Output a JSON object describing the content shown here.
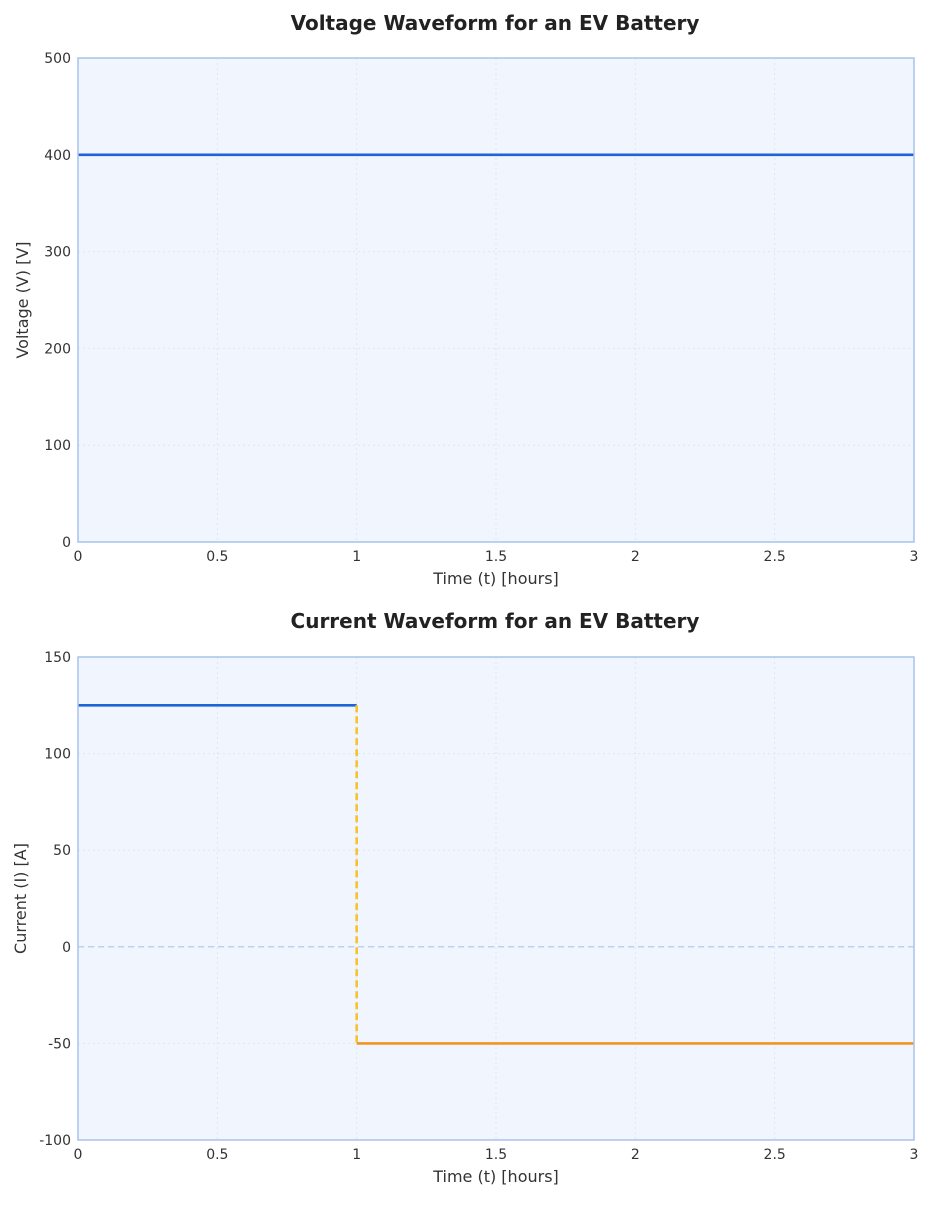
{
  "chart_data": [
    {
      "type": "line",
      "title": "Voltage Waveform for an EV Battery",
      "xlabel": "Time (t) [hours]",
      "ylabel": "Voltage (V) [V]",
      "xlim": [
        0,
        3
      ],
      "ylim": [
        0,
        500
      ],
      "xticks": [
        0,
        0.5,
        1,
        1.5,
        2,
        2.5,
        3
      ],
      "xtick_labels": [
        "0",
        "0.5",
        "1",
        "1.5",
        "2",
        "2.5",
        "3"
      ],
      "yticks": [
        0,
        100,
        200,
        300,
        400,
        500
      ],
      "ytick_labels": [
        "0",
        "100",
        "200",
        "300",
        "400",
        "500"
      ],
      "grid": true,
      "background": "#f1f6fe",
      "frame_color": "#a7c4ec",
      "zero_line": false,
      "series": [
        {
          "color": "#1f63d8",
          "dashed": false,
          "points": [
            [
              0,
              400
            ],
            [
              3,
              400
            ]
          ]
        }
      ]
    },
    {
      "type": "line",
      "title": "Current Waveform for an EV Battery",
      "xlabel": "Time (t) [hours]",
      "ylabel": "Current (I) [A]",
      "xlim": [
        0,
        3
      ],
      "ylim": [
        -100,
        150
      ],
      "xticks": [
        0,
        0.5,
        1,
        1.5,
        2,
        2.5,
        3
      ],
      "xtick_labels": [
        "0",
        "0.5",
        "1",
        "1.5",
        "2",
        "2.5",
        "3"
      ],
      "yticks": [
        -100,
        -50,
        0,
        50,
        100,
        150
      ],
      "ytick_labels": [
        "-100",
        "-50",
        "0",
        "50",
        "100",
        "150"
      ],
      "grid": true,
      "background": "#f1f6fe",
      "frame_color": "#a7c4ec",
      "zero_line": true,
      "zero_line_color": "#b9d3f2",
      "series": [
        {
          "color": "#1f63d8",
          "dashed": false,
          "points": [
            [
              0,
              125
            ],
            [
              1,
              125
            ]
          ]
        },
        {
          "color": "#f7c22c",
          "dashed": true,
          "points": [
            [
              1,
              125
            ],
            [
              1,
              -50
            ]
          ]
        },
        {
          "color": "#f39325",
          "dashed": false,
          "points": [
            [
              1,
              -50
            ],
            [
              3,
              -50
            ]
          ]
        }
      ]
    }
  ]
}
